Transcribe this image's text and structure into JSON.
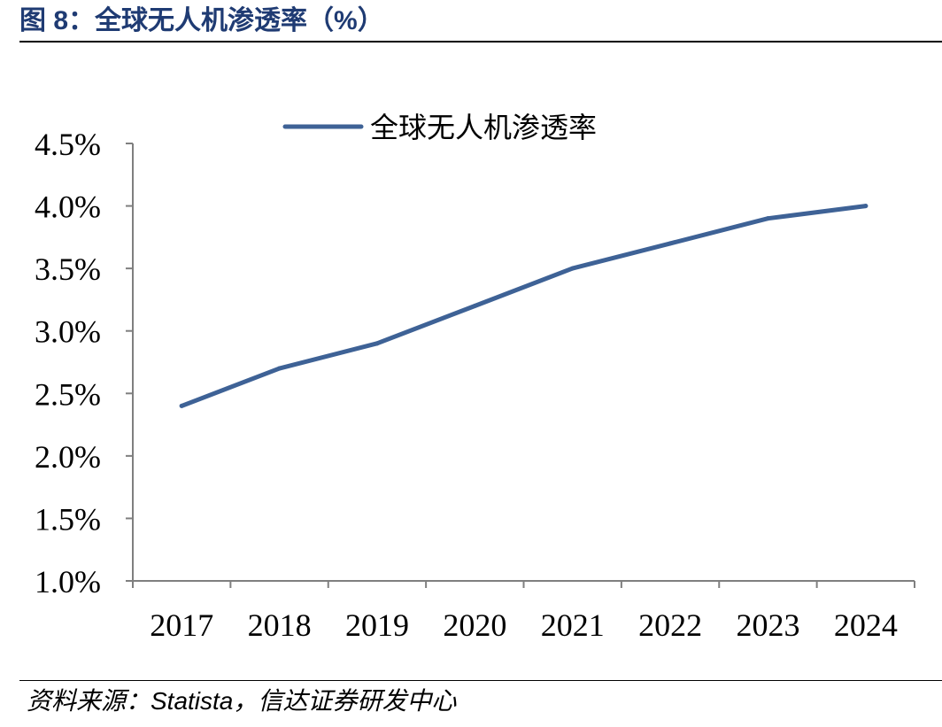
{
  "figure": {
    "title": "图 8：全球无人机渗透率（%）",
    "source": "资料来源：Statista，信达证券研发中心"
  },
  "colors": {
    "series": "#3e6296",
    "axis": "#7f7f7f",
    "title": "#1f3b73"
  },
  "chart_data": {
    "type": "line",
    "title": "",
    "xlabel": "",
    "ylabel": "",
    "categories": [
      "2017",
      "2018",
      "2019",
      "2020",
      "2021",
      "2022",
      "2023",
      "2024"
    ],
    "series": [
      {
        "name": "全球无人机渗透率",
        "values": [
          2.4,
          2.7,
          2.9,
          3.2,
          3.5,
          3.7,
          3.9,
          4.0
        ]
      }
    ],
    "ylim": [
      1.0,
      4.5
    ],
    "yticks": [
      "1.0%",
      "1.5%",
      "2.0%",
      "2.5%",
      "3.0%",
      "3.5%",
      "4.0%",
      "4.5%"
    ],
    "grid": false,
    "legend": "top"
  }
}
